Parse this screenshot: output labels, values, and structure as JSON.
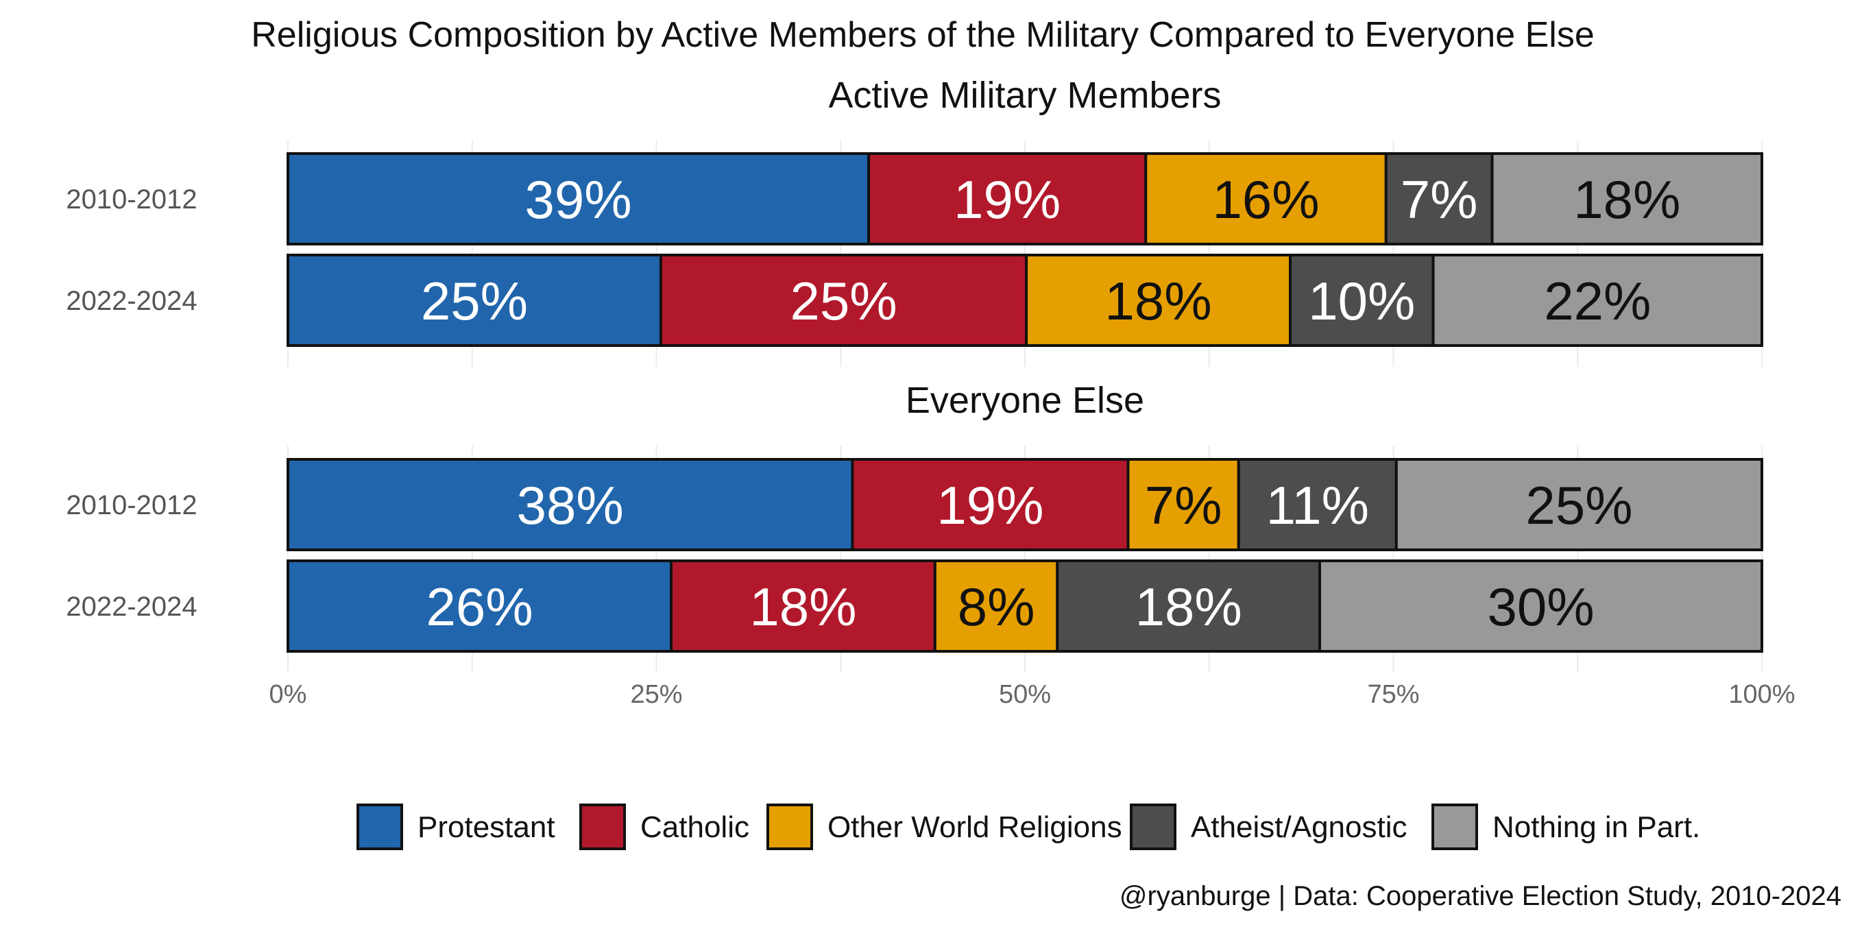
{
  "title": "Religious Composition by Active Members of the Military Compared to Everyone Else",
  "caption": "@ryanburge | Data: Cooperative Election Study, 2010-2024",
  "chart_data": {
    "type": "bar",
    "orientation": "horizontal",
    "stacked": "percent",
    "title": "Religious Composition by Active Members of the Military Compared to Everyone Else",
    "xlim": [
      0,
      100
    ],
    "x_ticks": [
      "0%",
      "25%",
      "50%",
      "75%",
      "100%"
    ],
    "x_tick_values": [
      0,
      25,
      50,
      75,
      100
    ],
    "legend_position": "bottom",
    "series_names": [
      "Protestant",
      "Catholic",
      "Other World Religions",
      "Atheist/Agnostic",
      "Nothing in Part."
    ],
    "colors": [
      "#2166ac",
      "#b2182b",
      "#e69f00",
      "#4d4d4d",
      "#999999"
    ],
    "label_colors": [
      "#ffffff",
      "#ffffff",
      "#111111",
      "#ffffff",
      "#111111"
    ],
    "facets": [
      {
        "title": "Active Military Members",
        "rows": [
          {
            "label": "2010-2012",
            "values": [
              39.4,
              18.8,
              16.3,
              7.2,
              18.3
            ],
            "labels": [
              "39%",
              "19%",
              "16%",
              "7%",
              "18%"
            ]
          },
          {
            "label": "2022-2024",
            "values": [
              25.3,
              24.8,
              17.9,
              9.7,
              22.3
            ],
            "labels": [
              "25%",
              "25%",
              "18%",
              "10%",
              "22%"
            ]
          }
        ]
      },
      {
        "title": "Everyone Else",
        "rows": [
          {
            "label": "2010-2012",
            "values": [
              38.3,
              18.7,
              7.5,
              10.7,
              24.8
            ],
            "labels": [
              "38%",
              "19%",
              "7%",
              "11%",
              "25%"
            ]
          },
          {
            "label": "2022-2024",
            "values": [
              26.0,
              17.9,
              8.3,
              17.8,
              30.0
            ],
            "labels": [
              "26%",
              "18%",
              "8%",
              "18%",
              "30%"
            ]
          }
        ]
      }
    ]
  }
}
